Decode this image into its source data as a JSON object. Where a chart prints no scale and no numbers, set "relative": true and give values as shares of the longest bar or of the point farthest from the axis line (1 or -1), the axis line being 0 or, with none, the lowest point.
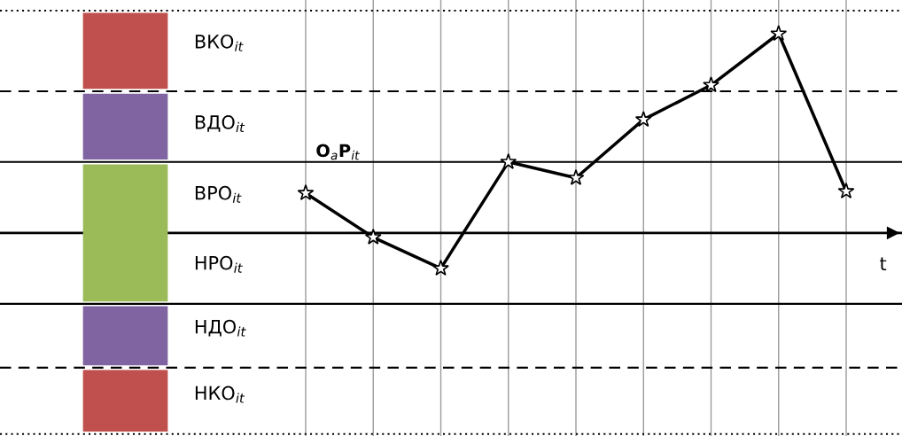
{
  "chart_data": {
    "type": "line",
    "relative": true,
    "categories": [
      null,
      null,
      null,
      null,
      null,
      null,
      null,
      null,
      null
    ],
    "series": [
      {
        "color": "#000000",
        "values": [
          0.2,
          -0.022,
          -0.178,
          0.356,
          0.276,
          0.569,
          0.742,
          1,
          0.209
        ]
      }
    ],
    "marker": "star",
    "line_style": "solid",
    "grid": "x",
    "legend": false,
    "ref_lines": [
      {
        "axis": "y",
        "value": 1.116,
        "label": "ВКО$_{it}$",
        "line_style": "dotted",
        "color": "#000000"
      },
      {
        "axis": "y",
        "value": 0.711,
        "label": "ВДО$_{it}$",
        "line_style": "dashed",
        "color": "#000000"
      },
      {
        "axis": "y",
        "value": 0.356,
        "label": "ВРО$_{it}$",
        "line_style": "solid",
        "color": "#000000"
      },
      {
        "axis": "y",
        "value": -0.356,
        "label": "НРО$_{it}$",
        "line_style": "solid",
        "color": "#000000"
      },
      {
        "axis": "y",
        "value": -0.676,
        "label": "НДО$_{it}$",
        "line_style": "dashed",
        "color": "#000000"
      },
      {
        "axis": "y",
        "value": -1.009,
        "label": "НКО$_{it}$",
        "line_style": "dotted",
        "color": "#000000"
      }
    ],
    "annotations": [
      "O$_{a}$P$_{it}$",
      "t"
    ]
  }
}
